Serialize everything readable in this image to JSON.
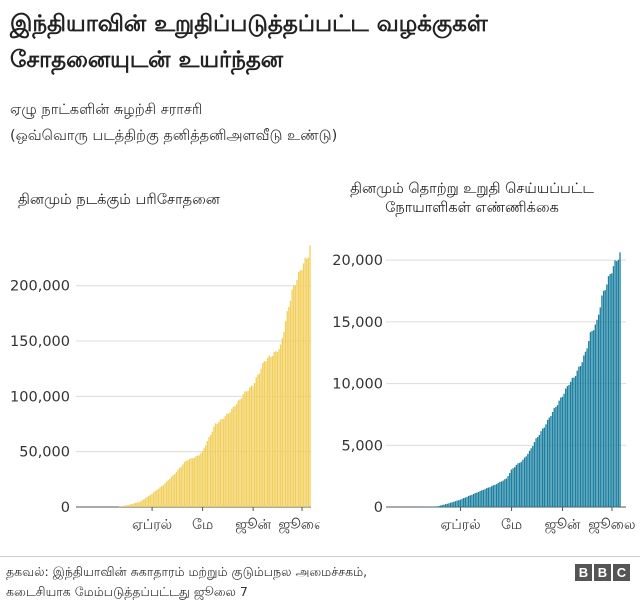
{
  "title": "இந்தியாவின் உறுதிப்படுத்தப்பட்ட வழக்குகள் சோதனையுடன் உயர்ந்தன",
  "subtitle_line1": "ஏழு நாட்களின் சுழற்சி சராசரி",
  "subtitle_line2": "(ஒவ்வொரு படத்திற்கு தனித்தனிஅளவீடு உண்டு)",
  "footer_line1": "தகவல்: இந்தியாவின் சுகாதாரம் மற்றும் குடும்பநல அமைச்சகம்,",
  "footer_line2": "கடைசியாக மேம்படுத்தப்பட்டது ஜூலை 7",
  "logo": [
    "B",
    "B",
    "C"
  ],
  "colors": {
    "tests": "#f2cf5b",
    "cases": "#1b7fa0",
    "grid": "#dcdcdc",
    "axis": "#555555"
  },
  "chart_data": [
    {
      "type": "bar",
      "title": "தினமும் நடக்கும் பரிசோதனை",
      "month_labels": [
        "ஏப்ரல்",
        "மே",
        "ஜூன்",
        "ஜூலை"
      ],
      "y_ticks": [
        0,
        50000,
        100000,
        150000,
        200000
      ],
      "y_tick_labels": [
        "0",
        "50,000",
        "100,000",
        "150,000",
        "200,000"
      ],
      "ylim": [
        0,
        235000
      ],
      "grid": true,
      "x_start_day": 0,
      "x_end_day": 126,
      "month_tick_days": [
        29,
        60,
        91,
        121
      ],
      "values_anchor_days": [
        8,
        15,
        22,
        29,
        36,
        43,
        50,
        57,
        60,
        68,
        71,
        74,
        78,
        80,
        83,
        85,
        91,
        95,
        98,
        105,
        108,
        112,
        115,
        119,
        122,
        125,
        126
      ],
      "values_anchor": [
        0,
        2000,
        5000,
        12000,
        20000,
        30000,
        42000,
        46000,
        50000,
        75000,
        78000,
        82000,
        88000,
        92000,
        97000,
        102000,
        110000,
        122000,
        132000,
        140000,
        145000,
        175000,
        195000,
        210000,
        220000,
        228000,
        235000
      ]
    },
    {
      "type": "bar",
      "title": "தினமும் தொற்று உறுதி செய்யப்பட்ட நோயாளிகள் எண்ணிக்கை",
      "month_labels": [
        "ஏப்ரல்",
        "மே",
        "ஜூன்",
        "ஜூலை"
      ],
      "y_ticks": [
        0,
        5000,
        10000,
        15000,
        20000
      ],
      "y_tick_labels": [
        "0",
        "5,000",
        "10,000",
        "15,000",
        "20,000"
      ],
      "ylim": [
        0,
        20500
      ],
      "grid": true,
      "x_start_day": 0,
      "x_end_day": 126,
      "month_tick_days": [
        29,
        60,
        91,
        121
      ],
      "values_anchor_days": [
        0,
        15,
        22,
        29,
        36,
        43,
        50,
        57,
        60,
        63,
        67,
        71,
        75,
        80,
        85,
        91,
        95,
        98,
        102,
        105,
        108,
        112,
        115,
        119,
        122,
        126
      ],
      "values_anchor": [
        0,
        50,
        300,
        600,
        1000,
        1400,
        1800,
        2300,
        3000,
        3400,
        3800,
        4500,
        5500,
        6500,
        7700,
        9000,
        10000,
        10500,
        11500,
        12500,
        14000,
        15000,
        17000,
        18500,
        19500,
        20500
      ]
    }
  ]
}
